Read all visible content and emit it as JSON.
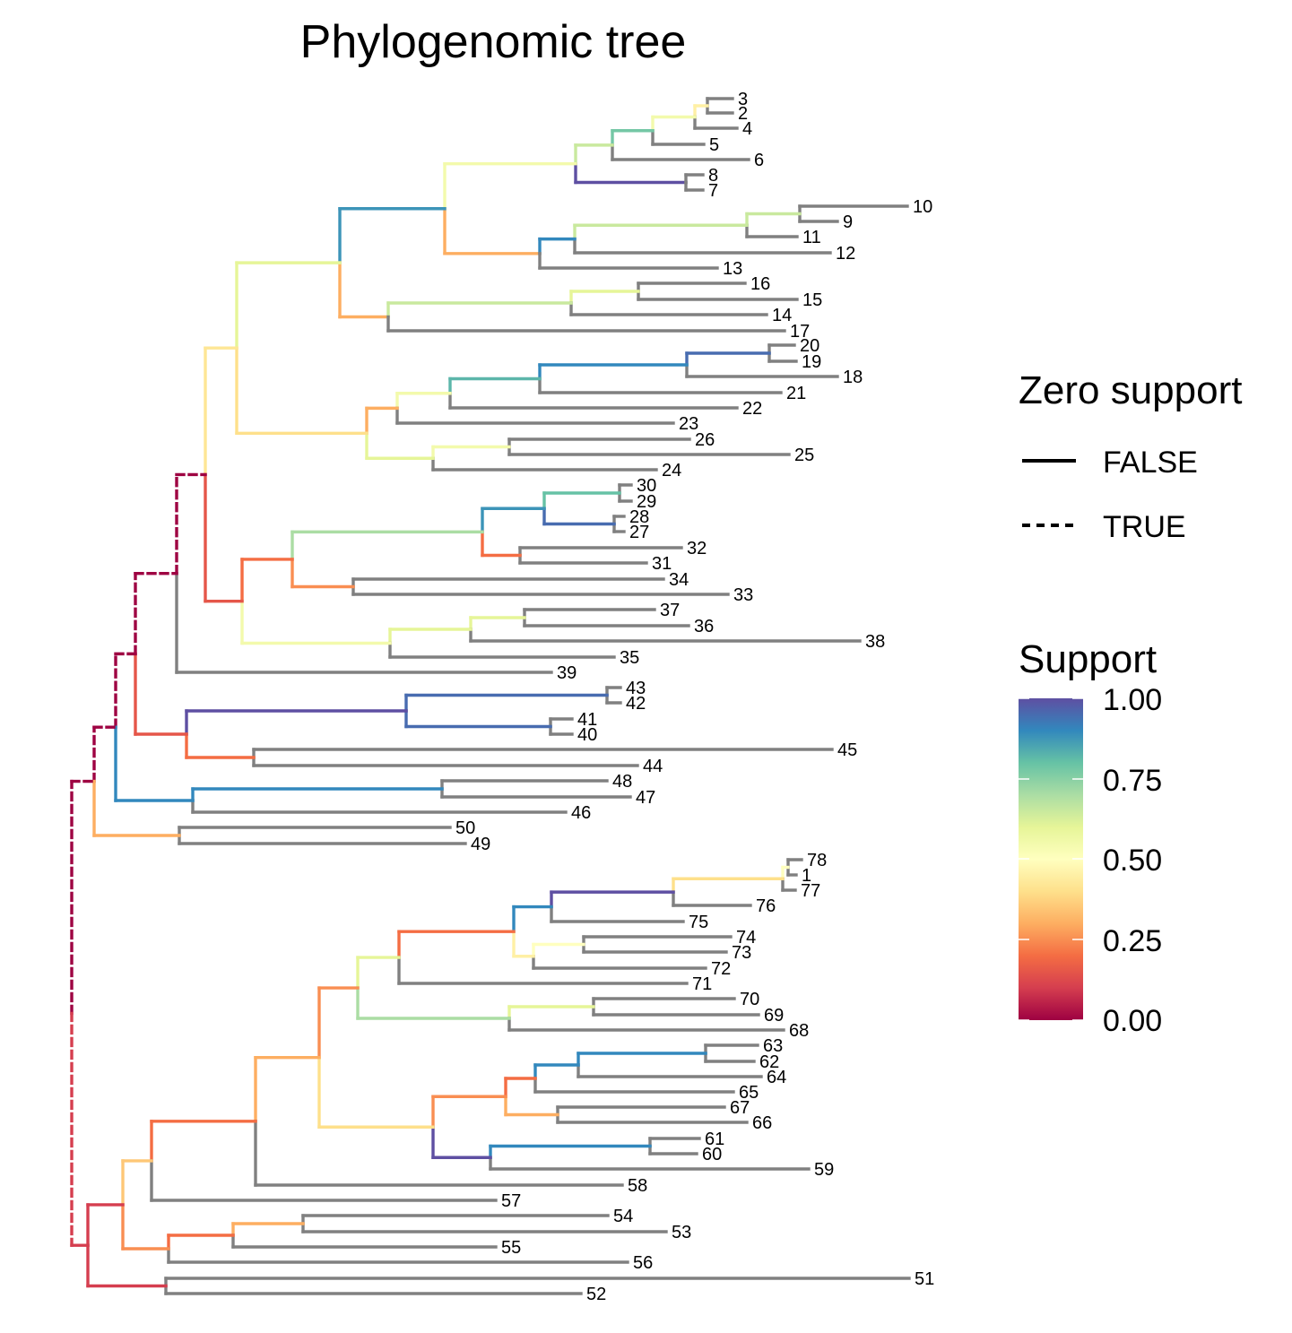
{
  "title": "Phylogenomic tree",
  "legend_linetype": {
    "title": "Zero support",
    "items": [
      {
        "label": "FALSE",
        "style": "solid"
      },
      {
        "label": "TRUE",
        "style": "dashed"
      }
    ]
  },
  "legend_color": {
    "title": "Support",
    "ticks": [
      "1.00",
      "0.75",
      "0.50",
      "0.25",
      "0.00"
    ],
    "palette": [
      "#9E0142",
      "#D53E4F",
      "#F46D43",
      "#FDAE61",
      "#FEE08B",
      "#FFFFBF",
      "#E6F598",
      "#ABDDA4",
      "#66C2A5",
      "#3288BD",
      "#5E4FA2"
    ]
  },
  "tip_color": "#808080",
  "chart_data": {
    "type": "tree",
    "tips": [
      "3",
      "2",
      "4",
      "5",
      "6",
      "8",
      "7",
      "10",
      "9",
      "11",
      "12",
      "13",
      "16",
      "15",
      "14",
      "17",
      "20",
      "19",
      "18",
      "21",
      "22",
      "23",
      "26",
      "25",
      "24",
      "30",
      "29",
      "28",
      "27",
      "32",
      "31",
      "34",
      "33",
      "37",
      "36",
      "38",
      "35",
      "39",
      "43",
      "42",
      "41",
      "40",
      "45",
      "44",
      "48",
      "47",
      "46",
      "50",
      "49",
      "78",
      "1",
      "77",
      "76",
      "75",
      "74",
      "73",
      "72",
      "71",
      "70",
      "69",
      "68",
      "63",
      "62",
      "64",
      "65",
      "67",
      "66",
      "61",
      "60",
      "59",
      "58",
      "57",
      "54",
      "53",
      "55",
      "56",
      "51",
      "52"
    ],
    "zero_support_dashed": [
      "A",
      "C",
      "E",
      "F"
    ],
    "support_scale": [
      0,
      1
    ]
  }
}
